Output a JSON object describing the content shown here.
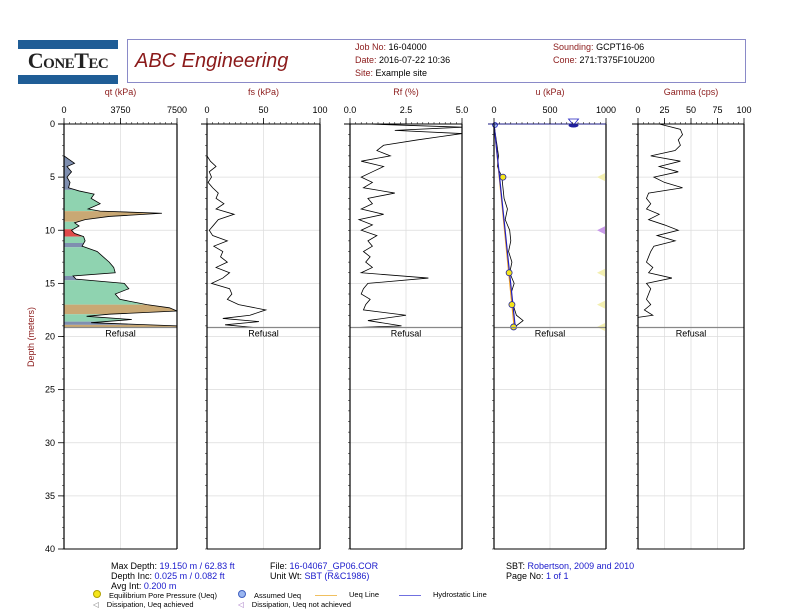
{
  "header": {
    "logo": {
      "part1": "Cone",
      "part2": "Tec"
    },
    "company": "ABC Engineering",
    "job_no": {
      "label": "Job No:",
      "value": "16-04000"
    },
    "date": {
      "label": "Date:",
      "value": "2016-07-22 10:36"
    },
    "site": {
      "label": "Site:",
      "value": "Example site"
    },
    "sounding": {
      "label": "Sounding:",
      "value": "GCPT16-06"
    },
    "cone": {
      "label": "Cone:",
      "value": "271:T375F10U200"
    }
  },
  "footer": {
    "max_depth": {
      "label": "Max Depth:",
      "value": "19.150 m / 62.83 ft"
    },
    "depth_inc": {
      "label": "Depth Inc:",
      "value": "0.025 m / 0.082 ft"
    },
    "avg_int": {
      "label": "Avg Int:",
      "value": "0.200 m"
    },
    "file": {
      "label": "File:",
      "value": "16-04067_GP06.COR"
    },
    "unit_wt": {
      "label": "Unit Wt:",
      "value": "SBT (R&C1986)"
    },
    "sbt": {
      "label": "SBT:",
      "value": "Robertson, 2009 and 2010"
    },
    "page_no": {
      "label": "Page No:",
      "value": "1 of 1"
    }
  },
  "legend": [
    {
      "icon": "yellow-circle-icon",
      "label": "Equilibrium Pore Pressure (Ueq)"
    },
    {
      "icon": "blue-circle-icon",
      "label": "Assumed Ueq"
    },
    {
      "icon": "orange-line-icon",
      "label": "Ueq Line"
    },
    {
      "icon": "blue-line-icon",
      "label": "Hydrostatic Line"
    },
    {
      "icon": "triangle-left-yellow-icon",
      "label": "Dissipation, Ueq achieved"
    },
    {
      "icon": "triangle-left-purple-icon",
      "label": "Dissipation, Ueq not achieved"
    }
  ],
  "colors": {
    "title_red": "#8b1a1a",
    "value_blue": "#1a1acc",
    "sbt_green": "#8fd3b0",
    "sbt_tan": "#c9a874",
    "sbt_red": "#e04a4a",
    "sbt_slate": "#7f8fb0",
    "ueq_line": "#f0a020",
    "hydro_line": "#2020c0"
  },
  "chart_data": {
    "type": "line",
    "ylabel": "Depth (meters)",
    "ylim": [
      0,
      40
    ],
    "yticks": [
      0,
      5,
      10,
      15,
      20,
      25,
      30,
      35,
      40
    ],
    "refusal_depth": 19.15,
    "refusal_label": "Refusal",
    "panels": [
      {
        "title": "qt (kPa)",
        "xlim": [
          0,
          7500
        ],
        "xticks": [
          "0",
          "3750",
          "7500"
        ],
        "xtick_values": [
          0,
          3750,
          7500
        ],
        "series": [
          {
            "name": "qt",
            "depth": [
              0,
              3,
              3.3,
              3.7,
              4,
              4.5,
              5,
              5.5,
              6,
              6.3,
              6.6,
              7,
              7.5,
              8,
              8.2,
              8.4,
              8.7,
              9,
              9.3,
              9.6,
              10,
              10.3,
              10.6,
              11,
              11.5,
              12,
              12.5,
              13,
              13.5,
              14,
              14.3,
              14.6,
              15,
              15.5,
              16,
              16.5,
              17,
              17.3,
              17.6,
              17.9,
              18.1,
              18.4,
              18.7,
              19,
              19.15
            ],
            "value": [
              0,
              0,
              300,
              700,
              200,
              500,
              200,
              400,
              300,
              1000,
              2000,
              1800,
              2400,
              1600,
              2400,
              6500,
              3000,
              1400,
              700,
              1000,
              500,
              700,
              1300,
              1400,
              1200,
              2200,
              2600,
              3000,
              3300,
              3400,
              600,
              800,
              4000,
              4300,
              3400,
              3700,
              5500,
              7000,
              7500,
              3000,
              1500,
              4500,
              1800,
              7500,
              7500
            ]
          }
        ],
        "sbt_layers": [
          {
            "from": 3,
            "to": 6.2,
            "zone": "slate"
          },
          {
            "from": 6.2,
            "to": 8.2,
            "zone": "green"
          },
          {
            "from": 8.2,
            "to": 9.2,
            "zone": "tan"
          },
          {
            "from": 9.2,
            "to": 9.9,
            "zone": "green"
          },
          {
            "from": 9.9,
            "to": 10.6,
            "zone": "red"
          },
          {
            "from": 10.6,
            "to": 11.2,
            "zone": "green"
          },
          {
            "from": 11.2,
            "to": 11.6,
            "zone": "slate"
          },
          {
            "from": 11.6,
            "to": 14.3,
            "zone": "green"
          },
          {
            "from": 14.3,
            "to": 14.7,
            "zone": "slate"
          },
          {
            "from": 14.7,
            "to": 17.0,
            "zone": "green"
          },
          {
            "from": 17.0,
            "to": 17.9,
            "zone": "tan"
          },
          {
            "from": 17.9,
            "to": 18.6,
            "zone": "green"
          },
          {
            "from": 18.6,
            "to": 18.9,
            "zone": "slate"
          },
          {
            "from": 18.9,
            "to": 19.15,
            "zone": "tan"
          }
        ]
      },
      {
        "title": "fs (kPa)",
        "xlim": [
          0,
          100
        ],
        "xticks": [
          "0",
          "50",
          "100"
        ],
        "xtick_values": [
          0,
          50,
          100
        ],
        "series": [
          {
            "name": "fs",
            "depth": [
              0,
              3,
              3.5,
              4,
              4.5,
              5,
              5.5,
              6,
              6.5,
              7,
              7.5,
              8,
              8.5,
              9,
              9.5,
              10,
              10.5,
              11,
              11.5,
              12,
              12.5,
              13,
              13.5,
              14,
              14.5,
              15,
              15.5,
              16,
              16.5,
              17,
              17.5,
              18,
              18.3,
              18.6,
              18.9,
              19.15
            ],
            "value": [
              0,
              0,
              3,
              8,
              2,
              4,
              1,
              5,
              10,
              8,
              15,
              8,
              24,
              10,
              6,
              2,
              5,
              18,
              6,
              14,
              12,
              18,
              8,
              20,
              14,
              4,
              20,
              22,
              18,
              28,
              52,
              38,
              14,
              46,
              16,
              42
            ]
          }
        ]
      },
      {
        "title": "Rf (%)",
        "xlim": [
          0,
          5
        ],
        "xticks": [
          "0.0",
          "2.5",
          "5.0"
        ],
        "xtick_values": [
          0,
          2.5,
          5
        ],
        "series": [
          {
            "name": "Rf",
            "depth": [
              0,
              0.3,
              0.6,
              0.9,
              1.2,
              1.5,
              2,
              2.5,
              3,
              3.5,
              4,
              4.5,
              5,
              5.5,
              6,
              6.5,
              7,
              7.5,
              8,
              8.5,
              9,
              9.5,
              10,
              10.5,
              11,
              11.5,
              12,
              12.5,
              13,
              13.5,
              14,
              14.5,
              15,
              15.5,
              16,
              16.5,
              17,
              17.5,
              18,
              18.5,
              19,
              19.15
            ],
            "value": [
              0.8,
              5,
              2,
              5,
              4,
              3,
              1.5,
              1.2,
              1.8,
              0.5,
              1.5,
              1,
              0.5,
              1,
              0.6,
              2,
              0.8,
              1,
              0.5,
              1.5,
              0.4,
              1,
              0.5,
              1.2,
              0.8,
              1,
              0.6,
              0.9,
              0.7,
              1,
              0.5,
              3.5,
              0.8,
              0.6,
              0.5,
              0.9,
              0.7,
              0.6,
              2.5,
              0.8,
              2.3,
              0.3
            ]
          }
        ]
      },
      {
        "title": "u (kPa)",
        "xlim": [
          0,
          1000
        ],
        "xticks": [
          "0",
          "500",
          "1000"
        ],
        "xtick_values": [
          0,
          500,
          1000
        ],
        "series": [
          {
            "name": "u",
            "depth": [
              0,
              3,
              4,
              5,
              6,
              7,
              8,
              9,
              10,
              11,
              12,
              13,
              14,
              15,
              16,
              17,
              18,
              18.5,
              19.15
            ],
            "value": [
              0,
              40,
              30,
              70,
              80,
              90,
              120,
              100,
              140,
              150,
              130,
              160,
              140,
              180,
              150,
              170,
              200,
              260,
              180
            ]
          },
          {
            "name": "Ueq Line",
            "depth": [
              0,
              19.15
            ],
            "value": [
              0,
              180
            ]
          },
          {
            "name": "Hydrostatic Line",
            "depth": [
              0,
              19.15
            ],
            "value": [
              0,
              190
            ]
          }
        ],
        "ueq_points": [
          {
            "depth": 5,
            "value": 80
          },
          {
            "depth": 14,
            "value": 135
          },
          {
            "depth": 17,
            "value": 160
          },
          {
            "depth": 19.1,
            "value": 175
          }
        ],
        "dissipation_markers": [
          {
            "depth": 5,
            "status": "achieved"
          },
          {
            "depth": 10,
            "status": "not achieved"
          },
          {
            "depth": 14,
            "status": "achieved"
          },
          {
            "depth": 17,
            "status": "achieved"
          },
          {
            "depth": 19.1,
            "status": "achieved"
          }
        ],
        "water_table_marker": {
          "value": 710,
          "depth": 0
        }
      },
      {
        "title": "Gamma (cps)",
        "xlim": [
          0,
          100
        ],
        "xticks": [
          "0",
          "25",
          "50",
          "75",
          "100"
        ],
        "xtick_values": [
          0,
          25,
          50,
          75,
          100
        ],
        "series": [
          {
            "name": "Gamma",
            "depth": [
              0,
              0.5,
              1,
              1.5,
              2,
              2.5,
              3,
              3.5,
              4,
              4.5,
              5,
              5.5,
              6,
              6.5,
              7,
              7.5,
              8,
              8.5,
              9,
              9.5,
              10,
              10.5,
              11,
              11.5,
              12,
              12.5,
              13,
              13.5,
              14,
              14.5,
              15,
              15.5,
              16,
              16.5,
              17,
              17.5,
              18,
              18.2
            ],
            "value": [
              20,
              40,
              42,
              38,
              40,
              35,
              12,
              40,
              20,
              38,
              15,
              25,
              42,
              10,
              8,
              12,
              8,
              20,
              10,
              25,
              38,
              18,
              35,
              15,
              12,
              10,
              8,
              14,
              10,
              32,
              8,
              12,
              10,
              8,
              12,
              6,
              14,
              0
            ]
          }
        ]
      }
    ]
  }
}
